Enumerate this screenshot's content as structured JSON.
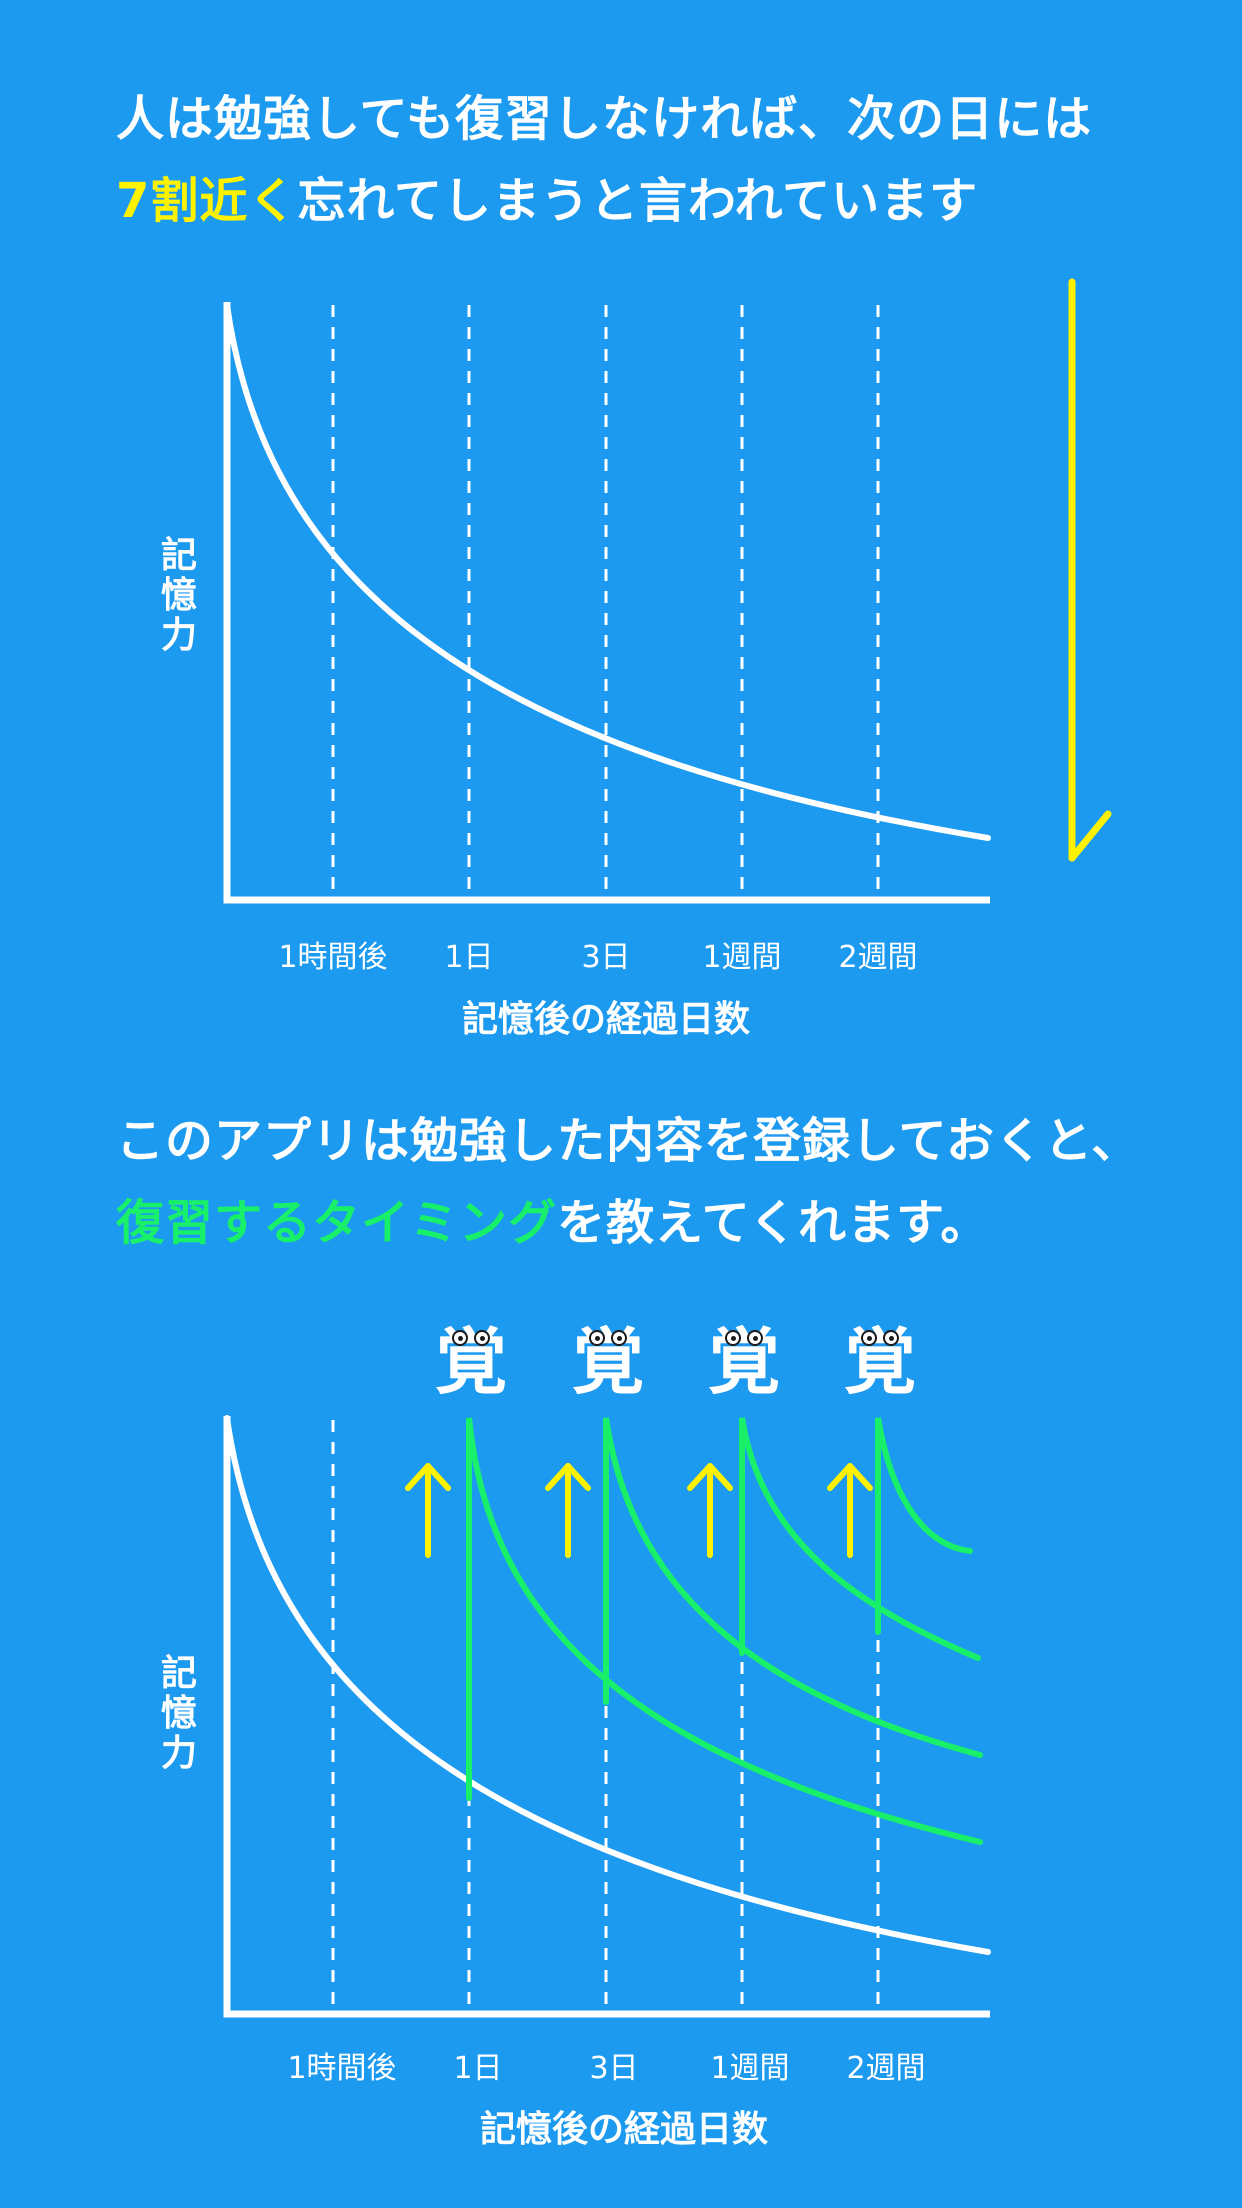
{
  "section1": {
    "headline_line1": "人は勉強しても復習しなければ、次の日には",
    "headline_line2_highlight": "7割近く",
    "headline_line2_rest": "忘れてしまうと言われています",
    "y_label": "記\n憶\n力",
    "x_ticks": [
      "1時間後",
      "1日",
      "3日",
      "1週間",
      "2週間"
    ],
    "x_title": "記憶後の経過日数"
  },
  "section2": {
    "headline_line1": "このアプリは勉強した内容を登録しておくと、",
    "headline_line2_highlight": "復習するタイミング",
    "headline_line2_rest": "を教えてくれます。",
    "y_label": "記\n憶\n力",
    "x_ticks": [
      "1時間後",
      "1日",
      "3日",
      "1週間",
      "2週間"
    ],
    "x_title": "記憶後の経過日数",
    "review_marker": "覚"
  },
  "colors": {
    "background": "#1C9AF0",
    "highlight_yellow": "#FFF200",
    "highlight_green": "#19F06A",
    "curve": "#FFFFFF"
  },
  "icons": {
    "decline_arrow": "arrow-down-icon",
    "review_arrow": "arrow-up-icon"
  }
}
